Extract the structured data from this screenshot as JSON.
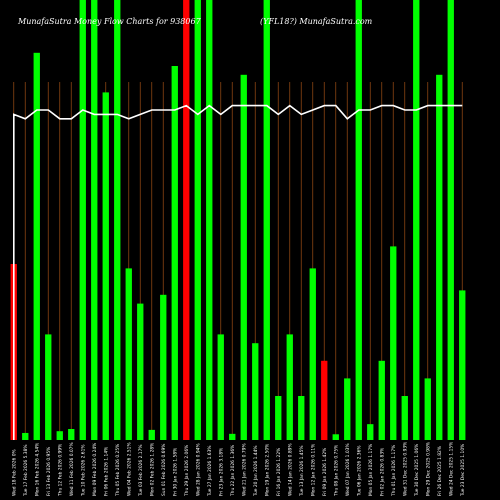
{
  "title": {
    "left": "MunafaSutra  Money Flow  Charts for 938067",
    "right": "(YFL18?) MunafaSutra.com"
  },
  "colors": {
    "background": "#000000",
    "up": "#00ff00",
    "down": "#ff0000",
    "line": "#ffffff",
    "grid": "#8b4513"
  },
  "chart_data": {
    "type": "bar",
    "title": "MunafaSutra  Money Flow  Charts for 938067  (YFL18?) MunafaSutra.com",
    "ylim": [
      0,
      100
    ],
    "grid": "vertical",
    "overlay": "line",
    "categories": [
      "",
      "",
      "",
      "",
      "",
      "",
      "",
      "",
      "",
      "",
      "",
      "",
      "",
      "",
      "",
      "",
      "",
      "",
      "",
      "",
      "",
      "",
      "",
      "",
      "",
      "",
      "",
      "",
      "",
      "",
      "",
      "",
      "",
      "",
      "",
      "",
      "",
      "",
      "",
      ""
    ],
    "values": [
      40,
      1.6,
      88,
      24,
      2,
      2.5,
      100,
      100,
      79,
      100,
      39,
      31,
      2.3,
      33,
      85,
      100,
      100,
      100,
      24,
      1.4,
      83,
      22,
      100,
      10,
      24,
      10,
      39,
      18,
      1.3,
      14,
      100,
      3.6,
      18,
      44,
      10,
      100,
      14,
      83,
      100,
      34
    ],
    "direction": [
      "down",
      "up",
      "up",
      "up",
      "up",
      "up",
      "up",
      "up",
      "up",
      "up",
      "up",
      "up",
      "up",
      "up",
      "up",
      "down",
      "up",
      "up",
      "up",
      "up",
      "up",
      "up",
      "up",
      "up",
      "up",
      "up",
      "up",
      "down",
      "up",
      "up",
      "up",
      "up",
      "up",
      "up",
      "up",
      "up",
      "up",
      "up",
      "up",
      "up"
    ],
    "line_values": [
      74,
      73,
      75,
      75,
      73,
      73,
      75,
      74,
      74,
      74,
      73,
      74,
      75,
      75,
      75,
      76,
      74,
      76,
      74,
      76,
      76,
      76,
      76,
      74,
      76,
      74,
      75,
      76,
      76,
      73,
      75,
      75,
      76,
      76,
      75,
      75,
      76,
      76,
      76,
      76
    ],
    "x_tick_labels": [
      "Wed 18 Feb 2026 0%",
      "Tue 17 Feb 2026 5.38%",
      "Mon 16 Feb 2026 4.54%",
      "Fri 13 Feb 2026 0.95%",
      "Thu 12 Feb 2026 0.99%",
      "Wed 11 Feb 2026 0.07%",
      "Tue 10 Feb 2026 2.61%",
      "Mon 09 Feb 2026 0.24%",
      "Fri 06 Feb 2026 1.14%",
      "Thu 05 Feb 2026 0.25%",
      "Wed 04 Feb 2026 2.51%",
      "Tue 03 Feb 2026 2.17%",
      "Mon 02 Feb 2026 1.28%",
      "Sun 01 Feb 2026 0.69%",
      "Fri 30 Jan 2026 1.58%",
      "Thu 29 Jan 2026 2.06%",
      "Wed 28 Jan 2026 0.94%",
      "Tue 27 Jan 2026 1.63%",
      "Fri 23 Jan 2026 3.18%",
      "Thu 22 Jan 2026 1.36%",
      "Wed 21 Jan 2026 0.79%",
      "Tue 20 Jan 2026 1.44%",
      "Mon 19 Jan 2026 2.50%",
      "Fri 16 Jan 2026 1.22%",
      "Wed 14 Jan 2026 0.89%",
      "Tue 13 Jan 2026 1.45%",
      "Mon 12 Jan 2026 0.11%",
      "Fri 09 Jan 2026 1.42%",
      "Thu 08 Jan 2026 0.75%",
      "Wed 07 Jan 2026 1.03%",
      "Tue 06 Jan 2026 2.36%",
      "Mon 05 Jan 2026 1.17%",
      "Fri 02 Jan 2026 0.83%",
      "Thu 01 Jan 2026 1.17%",
      "Wed 31 Dec 2025 0.93%",
      "Tue 30 Dec 2025 1.06%",
      "Mon 29 Dec 2025 0.98%",
      "Fri 26 Dec 2025 1.82%",
      "Wed 24 Dec 2025 1.15%",
      "Tue 23 Dec 2025 1.10%"
    ]
  }
}
